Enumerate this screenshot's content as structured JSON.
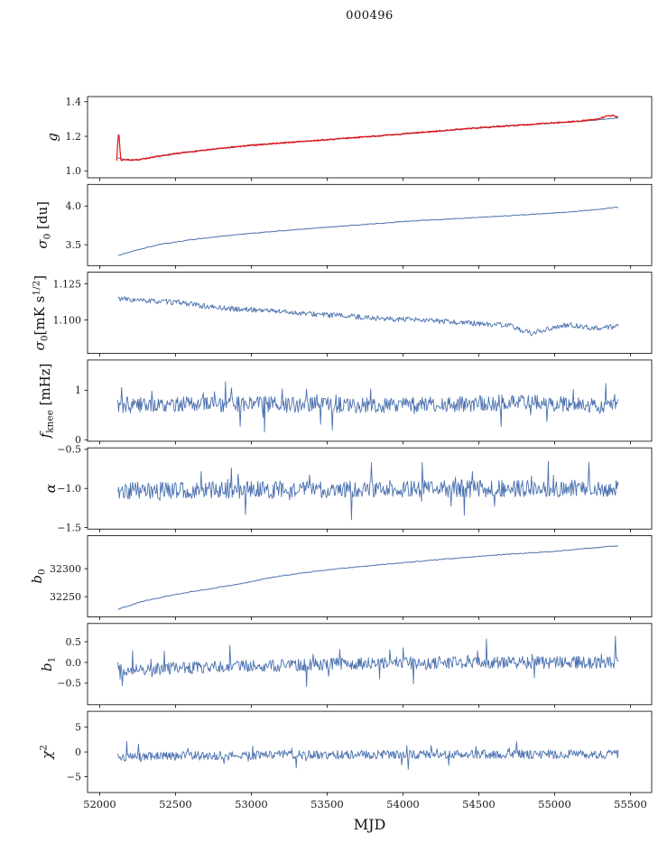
{
  "title": "000496",
  "chart_data": {
    "type": "line",
    "title": "000496",
    "xlabel": "MJD",
    "xlim": [
      51920,
      55640
    ],
    "xticks": [
      52000,
      52500,
      53000,
      53500,
      54000,
      54500,
      55000,
      55500
    ],
    "xtick_labels": [
      "52000",
      "52500",
      "53000",
      "53500",
      "54000",
      "54500",
      "55000",
      "55500"
    ],
    "grid": false,
    "legend": "none",
    "colors": {
      "line": "#4c72b0",
      "overlay": "#e01212",
      "axis": "#000000"
    },
    "subplots": [
      {
        "name": "g",
        "ylabel": "g",
        "ylabel_parts": [
          {
            "t": "g",
            "italic": true
          }
        ],
        "ylim": [
          0.96,
          1.43
        ],
        "ytick_vals": [
          1.0,
          1.2,
          1.4
        ],
        "ytick_labels": [
          "1.0",
          "1.2",
          "1.4"
        ],
        "series": [
          {
            "name": "g-fit",
            "color": "#4c72b0",
            "width": 1.0,
            "n": 400,
            "seed": 11,
            "noise": 0.0015,
            "trend": [
              [
                52120,
                1.075
              ],
              [
                52160,
                1.066
              ],
              [
                52230,
                1.063
              ],
              [
                52320,
                1.074
              ],
              [
                52450,
                1.093
              ],
              [
                52600,
                1.111
              ],
              [
                52800,
                1.13
              ],
              [
                53000,
                1.148
              ],
              [
                53200,
                1.162
              ],
              [
                53450,
                1.177
              ],
              [
                53700,
                1.194
              ],
              [
                53950,
                1.21
              ],
              [
                54200,
                1.228
              ],
              [
                54450,
                1.246
              ],
              [
                54700,
                1.261
              ],
              [
                54950,
                1.275
              ],
              [
                55150,
                1.287
              ],
              [
                55300,
                1.296
              ],
              [
                55420,
                1.307
              ]
            ]
          },
          {
            "name": "g-data",
            "color": "#e01212",
            "width": 1.2,
            "n": 900,
            "seed": 7,
            "noise": 0.004,
            "trend": [
              [
                52113,
                1.063
              ],
              [
                52118,
                1.15
              ],
              [
                52123,
                1.207
              ],
              [
                52128,
                1.205
              ],
              [
                52134,
                1.125
              ],
              [
                52140,
                1.057
              ],
              [
                52155,
                1.066
              ],
              [
                52230,
                1.062
              ],
              [
                52320,
                1.074
              ],
              [
                52450,
                1.093
              ],
              [
                52600,
                1.111
              ],
              [
                52800,
                1.13
              ],
              [
                53000,
                1.148
              ],
              [
                53200,
                1.162
              ],
              [
                53450,
                1.177
              ],
              [
                53700,
                1.194
              ],
              [
                53950,
                1.21
              ],
              [
                54200,
                1.228
              ],
              [
                54450,
                1.246
              ],
              [
                54700,
                1.261
              ],
              [
                54950,
                1.275
              ],
              [
                55150,
                1.287
              ],
              [
                55280,
                1.298
              ],
              [
                55340,
                1.316
              ],
              [
                55390,
                1.32
              ],
              [
                55420,
                1.31
              ]
            ]
          }
        ]
      },
      {
        "name": "sigma0-du",
        "ylabel": "sigma_0 [du]",
        "ylabel_parts": [
          {
            "t": "σ",
            "italic": true
          },
          {
            "t": "0",
            "sub": true
          },
          {
            "t": " [du]"
          }
        ],
        "ylim": [
          3.23,
          4.28
        ],
        "ytick_vals": [
          3.5,
          4.0
        ],
        "ytick_labels": [
          "3.5",
          "4.0"
        ],
        "series": [
          {
            "name": "sigma0-du",
            "color": "#4c72b0",
            "width": 1.0,
            "n": 450,
            "seed": 21,
            "noise": 0.005,
            "trend": [
              [
                52120,
                3.36
              ],
              [
                52250,
                3.435
              ],
              [
                52400,
                3.505
              ],
              [
                52600,
                3.565
              ],
              [
                52850,
                3.62
              ],
              [
                53100,
                3.665
              ],
              [
                53400,
                3.71
              ],
              [
                53700,
                3.755
              ],
              [
                54000,
                3.8
              ],
              [
                54300,
                3.832
              ],
              [
                54600,
                3.865
              ],
              [
                54900,
                3.898
              ],
              [
                55150,
                3.93
              ],
              [
                55420,
                3.985
              ]
            ]
          }
        ]
      },
      {
        "name": "sigma0-mk",
        "ylabel": "sigma_0 [mK s^(1/2)]",
        "ylabel_parts": [
          {
            "t": "σ",
            "italic": true
          },
          {
            "t": "0",
            "sub": true
          },
          {
            "t": "[mK s"
          },
          {
            "t": "1/2",
            "sup": true
          },
          {
            "t": "]"
          }
        ],
        "ylim": [
          1.077,
          1.133
        ],
        "ytick_vals": [
          1.1,
          1.125
        ],
        "ytick_labels": [
          "1.100",
          "1.125"
        ],
        "series": [
          {
            "name": "sigma0-mk",
            "color": "#4c72b0",
            "width": 0.9,
            "n": 650,
            "seed": 33,
            "noise": 0.0018,
            "trend": [
              [
                52120,
                1.115
              ],
              [
                52250,
                1.1135
              ],
              [
                52400,
                1.1128
              ],
              [
                52550,
                1.112
              ],
              [
                52700,
                1.1093
              ],
              [
                52900,
                1.1075
              ],
              [
                53100,
                1.1068
              ],
              [
                53350,
                1.1045
              ],
              [
                53600,
                1.103
              ],
              [
                53900,
                1.1008
              ],
              [
                54200,
                1.0995
              ],
              [
                54500,
                1.0975
              ],
              [
                54700,
                1.0962
              ],
              [
                54850,
                1.0905
              ],
              [
                54950,
                1.094
              ],
              [
                55100,
                1.0968
              ],
              [
                55250,
                1.0945
              ],
              [
                55420,
                1.0955
              ]
            ]
          }
        ]
      },
      {
        "name": "fknee",
        "ylabel": "f_knee [mHz]",
        "ylabel_parts": [
          {
            "t": "f",
            "italic": true
          },
          {
            "t": "knee",
            "sub": true
          },
          {
            "t": " [mHz]"
          }
        ],
        "ylim": [
          -0.03,
          1.61
        ],
        "ytick_vals": [
          0,
          1
        ],
        "ytick_labels": [
          "0",
          "1"
        ],
        "series": [
          {
            "name": "fknee",
            "color": "#4c72b0",
            "width": 0.9,
            "n": 680,
            "seed": 44,
            "noise": 0.16,
            "spike_prob": 0.05,
            "spike_amp": 0.45,
            "trend": [
              [
                52120,
                0.7
              ],
              [
                52800,
                0.72
              ],
              [
                53600,
                0.7
              ],
              [
                54300,
                0.71
              ],
              [
                54750,
                0.76
              ],
              [
                55420,
                0.67
              ]
            ]
          }
        ]
      },
      {
        "name": "alpha",
        "ylabel": "alpha",
        "ylabel_parts": [
          {
            "t": "α",
            "italic": true
          }
        ],
        "ylim": [
          -1.52,
          -0.48
        ],
        "ytick_vals": [
          -1.5,
          -1.0,
          -0.5
        ],
        "ytick_labels": [
          "−1.5",
          "−1.0",
          "−0.5"
        ],
        "series": [
          {
            "name": "alpha",
            "color": "#4c72b0",
            "width": 0.9,
            "n": 680,
            "seed": 55,
            "noise": 0.11,
            "spike_prob": 0.06,
            "spike_amp": 0.3,
            "trend": [
              [
                52120,
                -1.03
              ],
              [
                53500,
                -1.01
              ],
              [
                55420,
                -1.0
              ]
            ]
          }
        ]
      },
      {
        "name": "b0",
        "ylabel": "b_0",
        "ylabel_parts": [
          {
            "t": "b",
            "italic": true
          },
          {
            "t": "0",
            "sub": true
          }
        ],
        "ylim": [
          32214,
          32359
        ],
        "ytick_vals": [
          32250,
          32300
        ],
        "ytick_labels": [
          "32250",
          "32300"
        ],
        "series": [
          {
            "name": "b0",
            "color": "#4c72b0",
            "width": 1.0,
            "n": 400,
            "seed": 66,
            "noise": 0.7,
            "trend": [
              [
                52120,
                32228
              ],
              [
                52300,
                32243
              ],
              [
                52500,
                32254
              ],
              [
                52700,
                32263
              ],
              [
                52900,
                32272
              ],
              [
                53000,
                32277
              ],
              [
                53120,
                32284
              ],
              [
                53300,
                32291
              ],
              [
                53500,
                32298
              ],
              [
                53800,
                32306
              ],
              [
                54100,
                32313
              ],
              [
                54400,
                32320
              ],
              [
                54700,
                32326
              ],
              [
                55000,
                32331
              ],
              [
                55200,
                32336
              ],
              [
                55420,
                32341
              ]
            ]
          }
        ]
      },
      {
        "name": "b1",
        "ylabel": "b_1",
        "ylabel_parts": [
          {
            "t": "b",
            "italic": true
          },
          {
            "t": "1",
            "sub": true
          }
        ],
        "ylim": [
          -1.02,
          0.94
        ],
        "ytick_vals": [
          -0.5,
          0.0,
          0.5
        ],
        "ytick_labels": [
          "−0.5",
          "0.0",
          "0.5"
        ],
        "series": [
          {
            "name": "b1",
            "color": "#4c72b0",
            "width": 0.9,
            "n": 680,
            "seed": 77,
            "noise": 0.15,
            "spike_prob": 0.06,
            "spike_amp": 0.5,
            "trend": [
              [
                52120,
                -0.17
              ],
              [
                52600,
                -0.13
              ],
              [
                53200,
                -0.07
              ],
              [
                53800,
                -0.02
              ],
              [
                54400,
                0.0
              ],
              [
                55420,
                0.0
              ]
            ]
          }
        ]
      },
      {
        "name": "chi2",
        "ylabel": "chi^2",
        "ylabel_parts": [
          {
            "t": "χ",
            "italic": true
          },
          {
            "t": "2",
            "sup": true
          }
        ],
        "ylim": [
          -8.2,
          8.2
        ],
        "ytick_vals": [
          -5,
          0,
          5
        ],
        "ytick_labels": [
          "−5",
          "0",
          "5"
        ],
        "series": [
          {
            "name": "chi2",
            "color": "#4c72b0",
            "width": 0.9,
            "n": 680,
            "seed": 88,
            "noise": 0.9,
            "spike_prob": 0.05,
            "spike_amp": 2.5,
            "trend": [
              [
                52120,
                -1.0
              ],
              [
                52600,
                -0.8
              ],
              [
                53500,
                -0.55
              ],
              [
                55420,
                -0.45
              ]
            ]
          }
        ]
      }
    ]
  }
}
